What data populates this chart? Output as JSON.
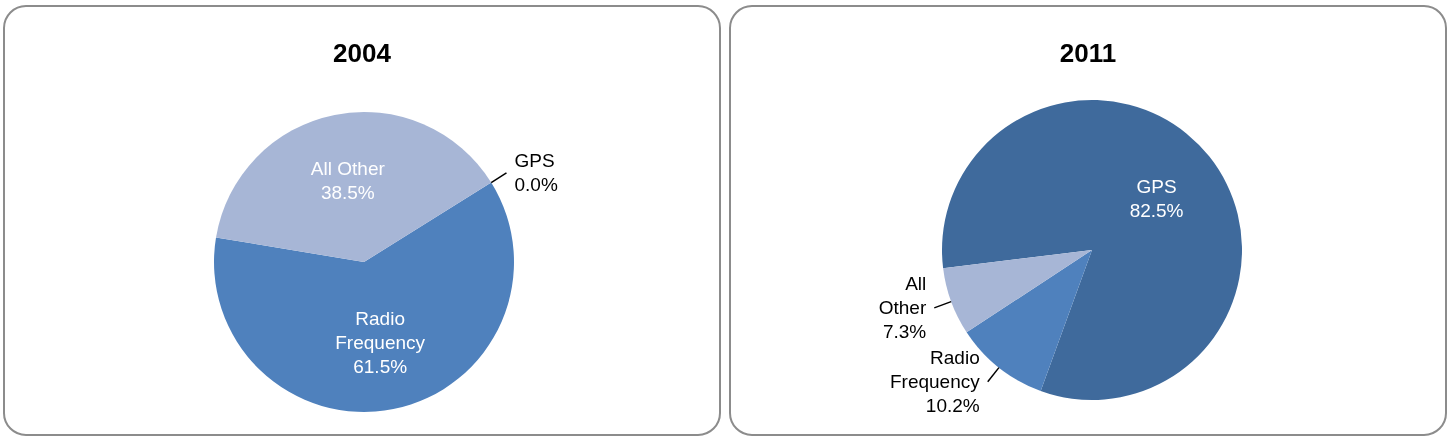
{
  "chart_data": [
    {
      "type": "pie",
      "title": "2004",
      "categories": [
        "GPS",
        "Radio Frequency",
        "All Other"
      ],
      "values": [
        0.0,
        61.5,
        38.5
      ],
      "value_labels": [
        "0.0%",
        "61.5%",
        "38.5%"
      ],
      "colors": [
        "#3f6a9c",
        "#4f81bd",
        "#a7b6d6"
      ]
    },
    {
      "type": "pie",
      "title": "2011",
      "categories": [
        "GPS",
        "Radio Frequency",
        "All Other"
      ],
      "values": [
        82.5,
        10.2,
        7.3
      ],
      "value_labels": [
        "82.5%",
        "10.2%",
        "7.3%"
      ],
      "colors": [
        "#3f6a9c",
        "#4f81bd",
        "#a7b6d6"
      ]
    }
  ]
}
